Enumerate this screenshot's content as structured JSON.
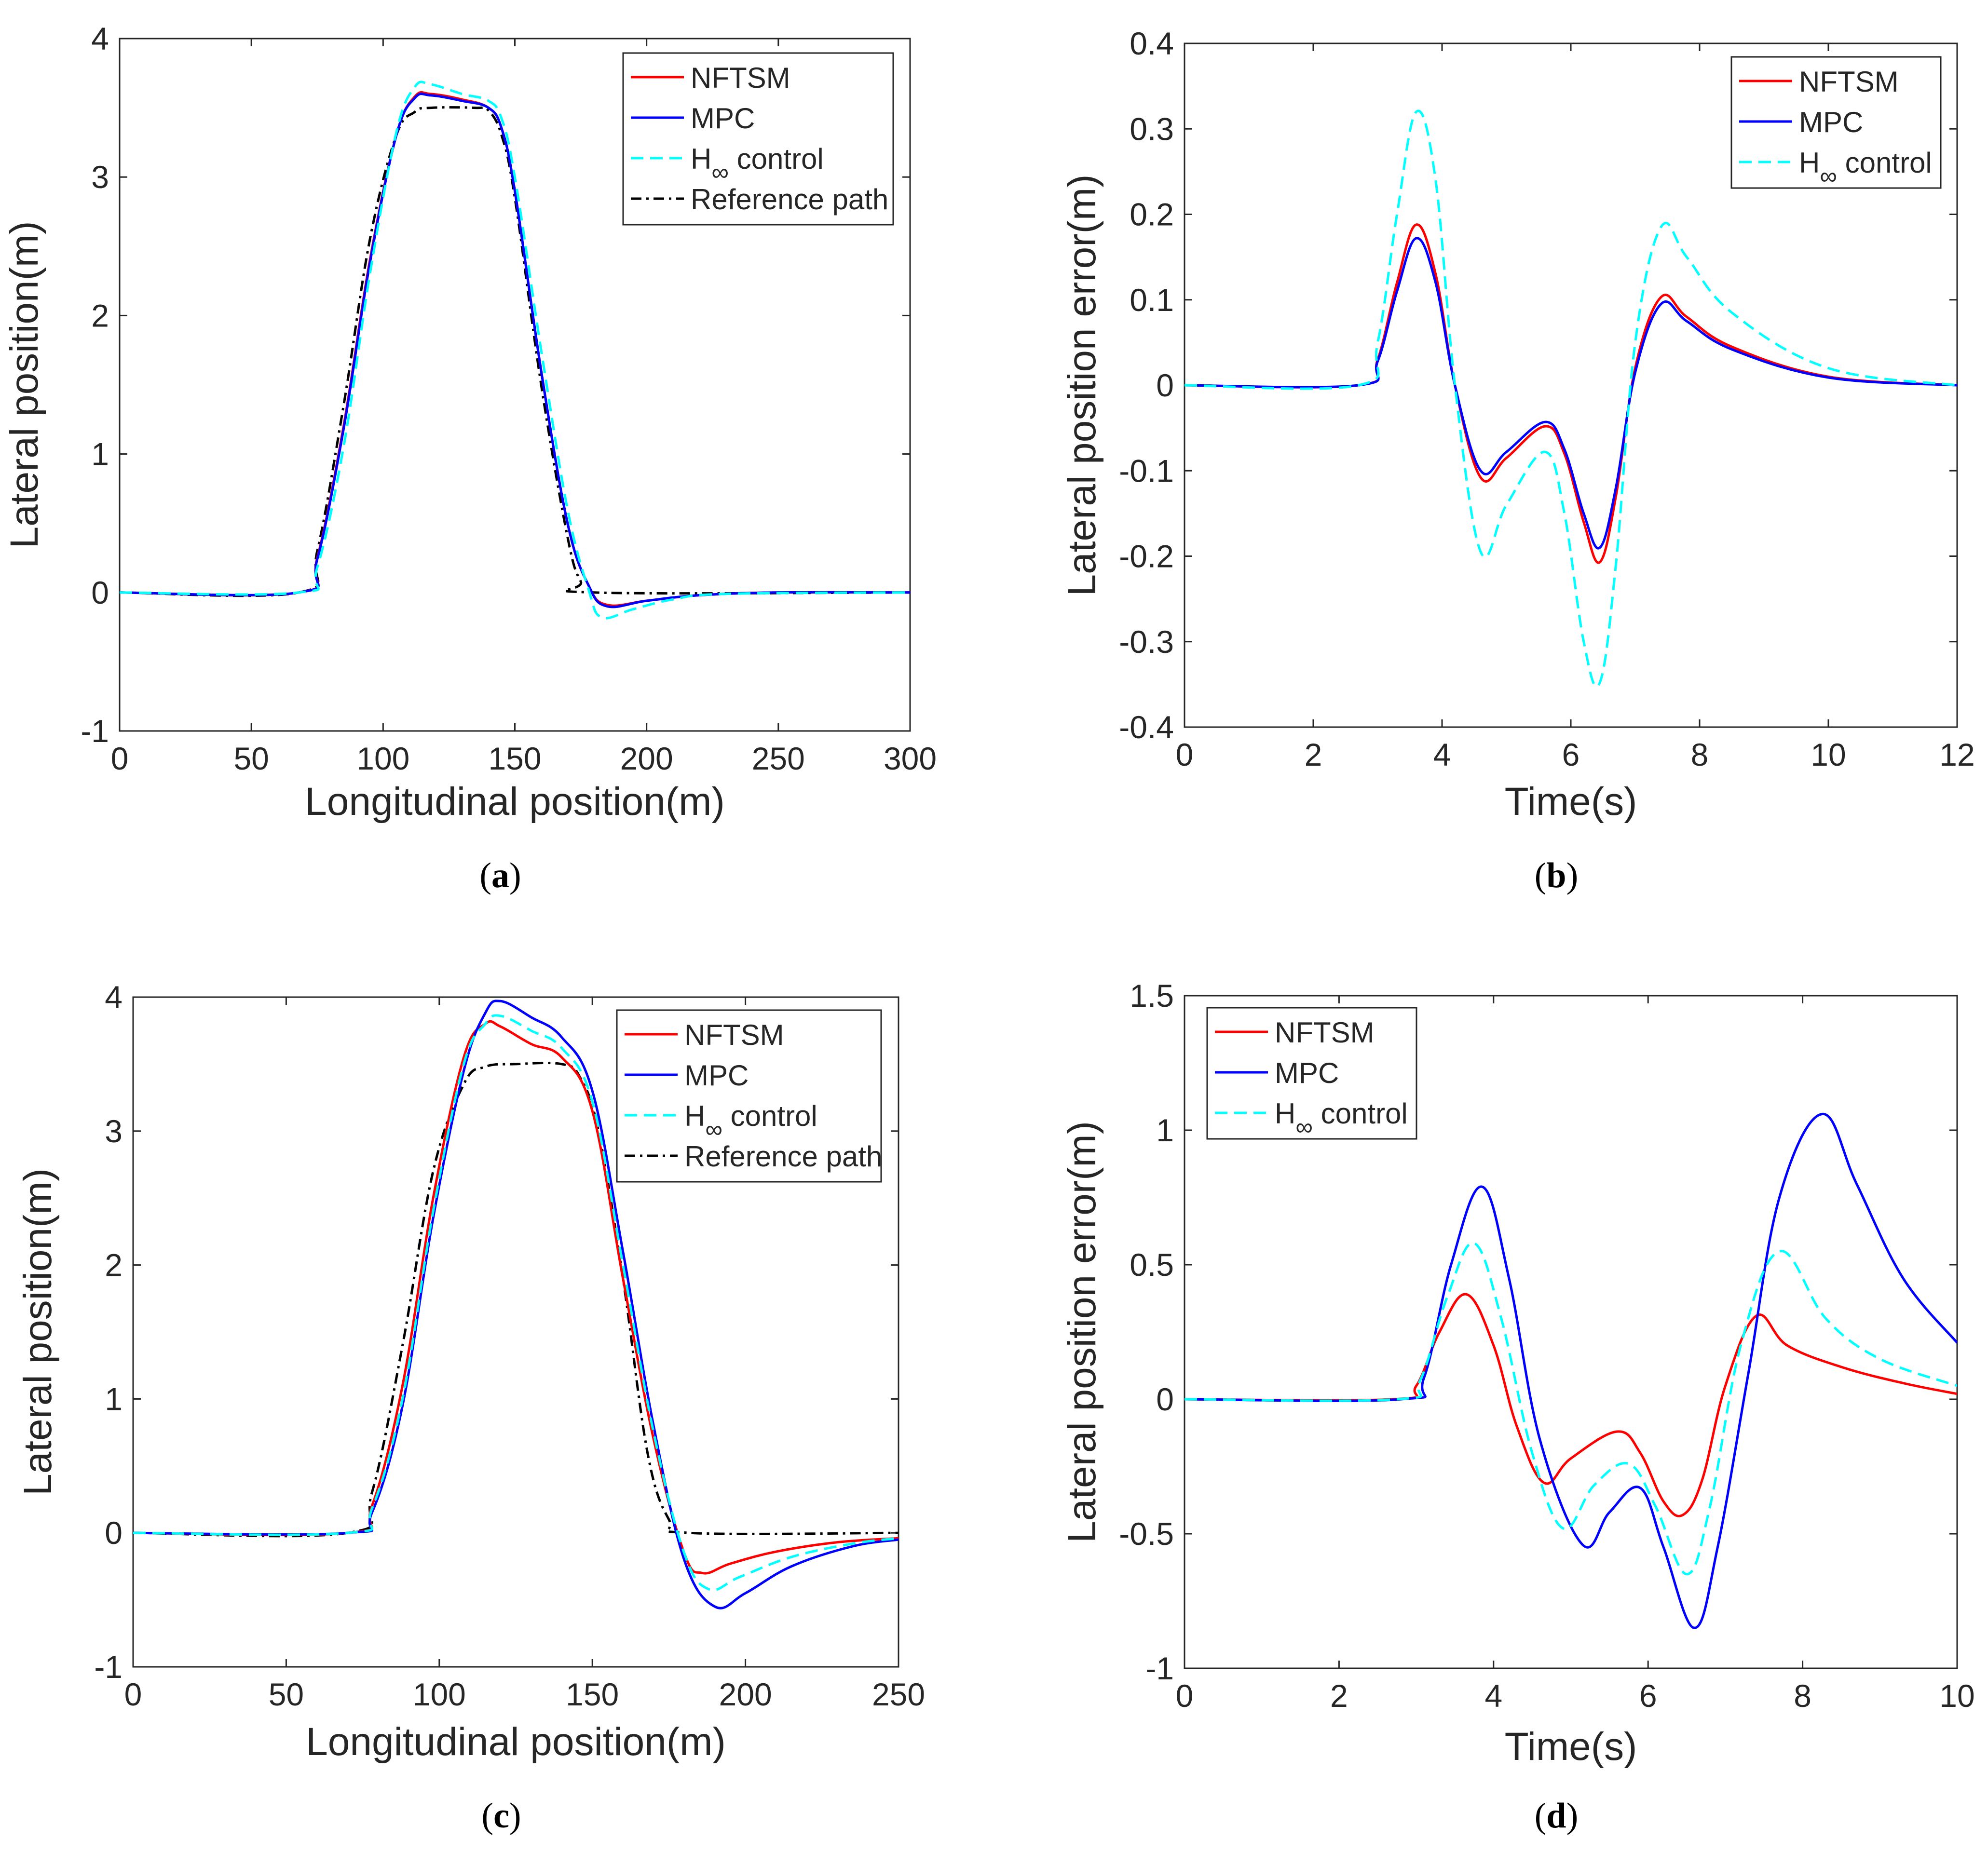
{
  "chart_data": [
    {
      "type": "line",
      "panel": "(a)",
      "caption_letter": "a",
      "xlabel": "Longitudinal position(m)",
      "ylabel": "Lateral position(m)",
      "xlim": [
        0,
        300
      ],
      "ylim": [
        -1,
        4
      ],
      "xticks": [
        0,
        50,
        100,
        150,
        200,
        250,
        300
      ],
      "yticks": [
        -1,
        0,
        1,
        2,
        3,
        4
      ],
      "legend_position": "top-right",
      "series": [
        {
          "name": "NFTSM",
          "color": "#ff0000",
          "dash": "solid",
          "x": [
            0,
            68,
            75,
            85,
            95,
            105,
            112,
            118,
            130,
            140,
            145,
            150,
            160,
            170,
            178,
            185,
            200,
            220,
            250,
            300
          ],
          "y": [
            0,
            0,
            0.25,
            1.2,
            2.4,
            3.3,
            3.58,
            3.6,
            3.56,
            3.5,
            3.35,
            2.9,
            1.6,
            0.5,
            0.05,
            -0.09,
            -0.06,
            -0.02,
            0,
            0
          ]
        },
        {
          "name": "MPC",
          "color": "#0000ff",
          "dash": "solid",
          "x": [
            0,
            68,
            75,
            85,
            95,
            105,
            112,
            118,
            130,
            140,
            145,
            150,
            160,
            170,
            178,
            185,
            200,
            220,
            250,
            300
          ],
          "y": [
            0,
            0,
            0.24,
            1.18,
            2.38,
            3.3,
            3.57,
            3.59,
            3.55,
            3.5,
            3.35,
            2.9,
            1.6,
            0.5,
            0.05,
            -0.1,
            -0.06,
            -0.02,
            0,
            0
          ]
        },
        {
          "name": "H∞ control",
          "label_main": "H",
          "label_sub": "∞",
          "label_rest": " control",
          "color": "#00ffff",
          "dash": "dashed",
          "x": [
            0,
            68,
            75,
            85,
            95,
            105,
            112,
            118,
            130,
            140,
            145,
            150,
            160,
            170,
            178,
            183,
            195,
            210,
            230,
            300
          ],
          "y": [
            0,
            0,
            0.18,
            1.05,
            2.3,
            3.32,
            3.65,
            3.67,
            3.6,
            3.55,
            3.42,
            3.0,
            1.75,
            0.6,
            0.02,
            -0.18,
            -0.12,
            -0.05,
            -0.01,
            0
          ]
        },
        {
          "name": "Reference path",
          "color": "#000000",
          "dash": "dashdot",
          "x": [
            0,
            68,
            75,
            85,
            95,
            105,
            112,
            118,
            135,
            140,
            145,
            150,
            160,
            170,
            175,
            180,
            300
          ],
          "y": [
            0,
            0,
            0.3,
            1.35,
            2.55,
            3.3,
            3.47,
            3.5,
            3.5,
            3.48,
            3.3,
            2.85,
            1.5,
            0.4,
            0.08,
            0,
            0
          ]
        }
      ]
    },
    {
      "type": "line",
      "panel": "(b)",
      "caption_letter": "b",
      "xlabel": "Time(s)",
      "ylabel": "Lateral position error(m)",
      "xlim": [
        0,
        12
      ],
      "ylim": [
        -0.4,
        0.4
      ],
      "xticks": [
        0,
        2,
        4,
        6,
        8,
        10,
        12
      ],
      "yticks": [
        -0.4,
        -0.3,
        -0.2,
        -0.1,
        0,
        0.1,
        0.2,
        0.3,
        0.4
      ],
      "legend_position": "top-right",
      "series": [
        {
          "name": "NFTSM",
          "color": "#ff0000",
          "dash": "solid",
          "x": [
            0,
            2.7,
            3.0,
            3.3,
            3.6,
            3.9,
            4.2,
            4.6,
            5.0,
            5.6,
            5.9,
            6.2,
            6.45,
            6.7,
            7.0,
            7.4,
            7.8,
            8.5,
            10,
            12
          ],
          "y": [
            0,
            0,
            0.03,
            0.12,
            0.188,
            0.13,
            0.0,
            -0.108,
            -0.085,
            -0.048,
            -0.08,
            -0.16,
            -0.207,
            -0.13,
            0.02,
            0.103,
            0.08,
            0.045,
            0.01,
            0
          ]
        },
        {
          "name": "MPC",
          "color": "#0000ff",
          "dash": "solid",
          "x": [
            0,
            2.7,
            3.0,
            3.3,
            3.6,
            3.9,
            4.2,
            4.6,
            5.0,
            5.6,
            5.9,
            6.2,
            6.45,
            6.7,
            7.0,
            7.4,
            7.8,
            8.5,
            10,
            12
          ],
          "y": [
            0,
            0,
            0.028,
            0.11,
            0.172,
            0.12,
            0.0,
            -0.1,
            -0.078,
            -0.043,
            -0.075,
            -0.15,
            -0.19,
            -0.12,
            0.015,
            0.095,
            0.075,
            0.042,
            0.009,
            0
          ]
        },
        {
          "name": "H∞ control",
          "label_main": "H",
          "label_sub": "∞",
          "label_rest": " control",
          "color": "#00ffff",
          "dash": "dashed",
          "x": [
            0,
            2.7,
            3.0,
            3.3,
            3.6,
            3.9,
            4.2,
            4.6,
            5.0,
            5.6,
            5.9,
            6.2,
            6.45,
            6.7,
            7.0,
            7.4,
            7.8,
            8.5,
            10,
            12
          ],
          "y": [
            0,
            0,
            0.05,
            0.2,
            0.32,
            0.24,
            0.0,
            -0.195,
            -0.14,
            -0.078,
            -0.15,
            -0.3,
            -0.348,
            -0.21,
            0.05,
            0.185,
            0.15,
            0.085,
            0.02,
            0
          ]
        }
      ]
    },
    {
      "type": "line",
      "panel": "(c)",
      "caption_letter": "c",
      "xlabel": "Longitudinal position(m)",
      "ylabel": "Lateral position(m)",
      "xlim": [
        0,
        250
      ],
      "ylim": [
        -1,
        4
      ],
      "xticks": [
        0,
        50,
        100,
        150,
        200,
        250
      ],
      "yticks": [
        -1,
        0,
        1,
        2,
        3,
        4
      ],
      "legend_position": "top-right",
      "series": [
        {
          "name": "NFTSM",
          "color": "#ff0000",
          "dash": "solid",
          "x": [
            0,
            70,
            78,
            88,
            98,
            108,
            115,
            120,
            130,
            140,
            150,
            160,
            170,
            180,
            186,
            195,
            210,
            230,
            250
          ],
          "y": [
            0,
            0,
            0.2,
            1.1,
            2.5,
            3.55,
            3.8,
            3.78,
            3.65,
            3.55,
            3.15,
            1.9,
            0.7,
            -0.15,
            -0.3,
            -0.23,
            -0.14,
            -0.07,
            -0.04
          ]
        },
        {
          "name": "MPC",
          "color": "#0000ff",
          "dash": "solid",
          "x": [
            0,
            70,
            78,
            88,
            98,
            108,
            115,
            120,
            130,
            140,
            150,
            160,
            170,
            180,
            190,
            200,
            215,
            235,
            250
          ],
          "y": [
            0,
            0,
            0.15,
            0.95,
            2.35,
            3.45,
            3.88,
            3.97,
            3.85,
            3.7,
            3.3,
            2.1,
            0.8,
            -0.2,
            -0.55,
            -0.45,
            -0.25,
            -0.1,
            -0.05
          ]
        },
        {
          "name": "H∞ control",
          "label_main": "H",
          "label_sub": "∞",
          "label_rest": " control",
          "color": "#00ffff",
          "dash": "dashed",
          "x": [
            0,
            70,
            78,
            88,
            98,
            108,
            115,
            120,
            130,
            140,
            150,
            160,
            170,
            180,
            188,
            198,
            215,
            235,
            250
          ],
          "y": [
            0,
            0,
            0.18,
            1.0,
            2.4,
            3.5,
            3.8,
            3.86,
            3.75,
            3.62,
            3.22,
            2.0,
            0.75,
            -0.15,
            -0.42,
            -0.33,
            -0.18,
            -0.08,
            -0.04
          ]
        },
        {
          "name": "Reference path",
          "color": "#000000",
          "dash": "dashdot",
          "x": [
            0,
            70,
            78,
            88,
            98,
            108,
            115,
            125,
            140,
            146,
            152,
            160,
            168,
            175,
            182,
            250
          ],
          "y": [
            0,
            0,
            0.3,
            1.4,
            2.7,
            3.35,
            3.48,
            3.5,
            3.5,
            3.4,
            3.0,
            1.9,
            0.6,
            0.1,
            0,
            0
          ]
        }
      ]
    },
    {
      "type": "line",
      "panel": "(d)",
      "caption_letter": "d",
      "xlabel": "Time(s)",
      "ylabel": "Lateral position error(m)",
      "xlim": [
        0,
        10
      ],
      "ylim": [
        -1,
        1.5
      ],
      "xticks": [
        0,
        2,
        4,
        6,
        8,
        10
      ],
      "yticks": [
        -1,
        -0.5,
        0,
        0.5,
        1,
        1.5
      ],
      "legend_position": "top-left",
      "series": [
        {
          "name": "NFTSM",
          "color": "#ff0000",
          "dash": "solid",
          "x": [
            0,
            2.7,
            3.0,
            3.3,
            3.65,
            4.0,
            4.3,
            4.65,
            5.0,
            5.6,
            5.9,
            6.2,
            6.45,
            6.7,
            7.0,
            7.4,
            7.8,
            8.5,
            9.3,
            10
          ],
          "y": [
            0,
            0,
            0.05,
            0.25,
            0.39,
            0.2,
            -0.1,
            -0.31,
            -0.22,
            -0.12,
            -0.2,
            -0.38,
            -0.43,
            -0.3,
            0.05,
            0.31,
            0.2,
            0.12,
            0.06,
            0.02
          ]
        },
        {
          "name": "MPC",
          "color": "#0000ff",
          "dash": "solid",
          "x": [
            0,
            2.8,
            3.1,
            3.45,
            3.85,
            4.2,
            4.6,
            5.15,
            5.5,
            5.9,
            6.2,
            6.6,
            6.9,
            7.3,
            7.7,
            8.25,
            8.7,
            9.3,
            10
          ],
          "y": [
            0,
            0,
            0.08,
            0.5,
            0.79,
            0.45,
            -0.15,
            -0.54,
            -0.42,
            -0.33,
            -0.55,
            -0.85,
            -0.55,
            0.1,
            0.75,
            1.06,
            0.8,
            0.45,
            0.21
          ]
        },
        {
          "name": "H∞ control",
          "label_main": "H",
          "label_sub": "∞",
          "label_rest": " control",
          "color": "#00ffff",
          "dash": "dashed",
          "x": [
            0,
            2.75,
            3.05,
            3.4,
            3.75,
            4.1,
            4.5,
            4.9,
            5.3,
            5.75,
            6.1,
            6.5,
            6.8,
            7.2,
            7.7,
            8.3,
            9.0,
            10
          ],
          "y": [
            0,
            0,
            0.07,
            0.38,
            0.58,
            0.3,
            -0.2,
            -0.48,
            -0.32,
            -0.24,
            -0.4,
            -0.65,
            -0.4,
            0.2,
            0.55,
            0.3,
            0.15,
            0.05
          ]
        }
      ]
    }
  ]
}
